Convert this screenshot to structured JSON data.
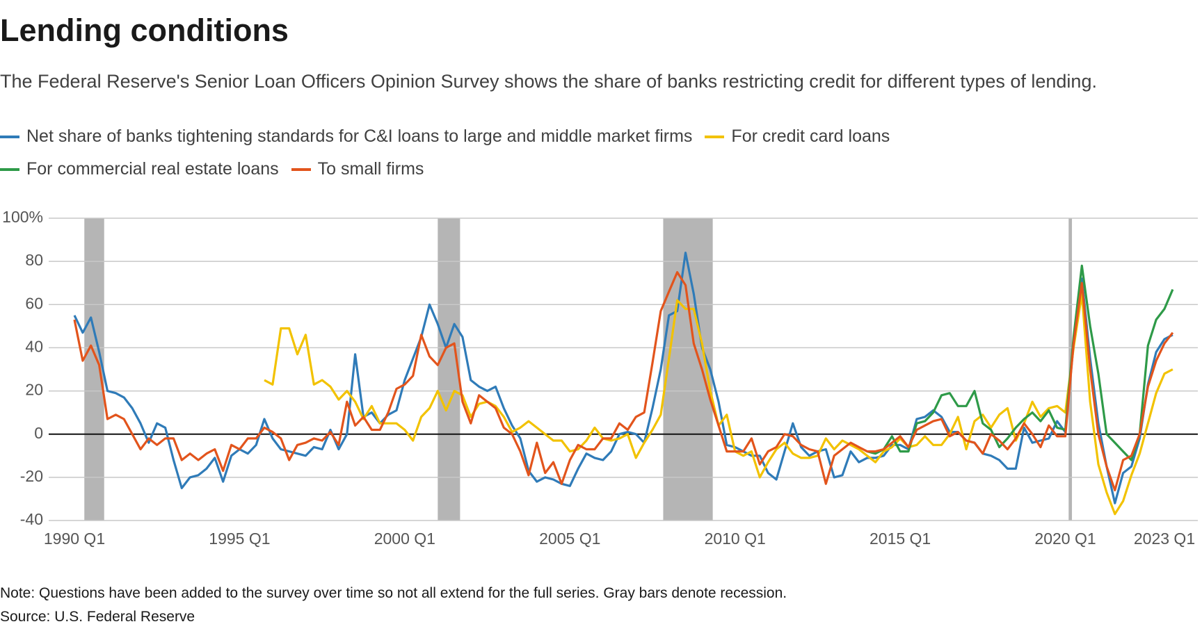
{
  "chart_data": {
    "type": "line",
    "title": "Lending conditions",
    "subtitle": "The Federal Reserve's Senior Loan Officers Opinion Survey shows the share of banks restricting credit for different types of lending.",
    "note": "Note: Questions have been added to the survey over time so not all extend for the full series. Gray bars denote recession.",
    "source": "Source: U.S. Federal Reserve",
    "categories": [
      "1990 Q1",
      null,
      null,
      null,
      null,
      null,
      null,
      null,
      null,
      null,
      null,
      null,
      null,
      null,
      null,
      null,
      null,
      null,
      null,
      null,
      "1995 Q1",
      null,
      null,
      null,
      null,
      null,
      null,
      null,
      null,
      null,
      null,
      null,
      null,
      null,
      null,
      null,
      null,
      null,
      null,
      null,
      "2000 Q1",
      null,
      null,
      null,
      null,
      null,
      null,
      null,
      null,
      null,
      null,
      null,
      null,
      null,
      null,
      null,
      null,
      null,
      null,
      null,
      "2005 Q1",
      null,
      null,
      null,
      null,
      null,
      null,
      null,
      null,
      null,
      null,
      null,
      null,
      null,
      null,
      null,
      null,
      null,
      null,
      null,
      "2010 Q1",
      null,
      null,
      null,
      null,
      null,
      null,
      null,
      null,
      null,
      null,
      null,
      null,
      null,
      null,
      null,
      null,
      null,
      null,
      null,
      "2015 Q1",
      null,
      null,
      null,
      null,
      null,
      null,
      null,
      null,
      null,
      null,
      null,
      null,
      null,
      null,
      null,
      null,
      null,
      null,
      null,
      "2020 Q1",
      null,
      null,
      null,
      null,
      null,
      null,
      null,
      null,
      null,
      null,
      null,
      "2023 Q1",
      null
    ],
    "series": [
      {
        "name": "Net share of banks tightening standards for C&I loans to large and middle market firms",
        "color": "#2f7bb8",
        "values": [
          55,
          47,
          54,
          38,
          20,
          19,
          17,
          12,
          5,
          -4,
          5,
          3,
          -12,
          -25,
          -20,
          -19,
          -16,
          -11,
          -22,
          -10,
          -7,
          -9,
          -5,
          7,
          -2,
          -7,
          -8,
          -9,
          -10,
          -6,
          -7,
          2,
          -7,
          0,
          37,
          8,
          10,
          5,
          9,
          11,
          25,
          35,
          45,
          60,
          51,
          40,
          51,
          45,
          25,
          22,
          20,
          22,
          12,
          4,
          -2,
          -17,
          -22,
          -20,
          -21,
          -23,
          -24,
          -16,
          -9,
          -11,
          -12,
          -8,
          0,
          1,
          0,
          -4,
          12,
          30,
          55,
          57,
          84,
          65,
          40,
          30,
          15,
          -5,
          -6,
          -8,
          -10,
          -10,
          -18,
          -21,
          -8,
          5,
          -6,
          -10,
          -8,
          -7,
          -20,
          -19,
          -8,
          -13,
          -11,
          -11,
          -10,
          -5,
          -5,
          -7,
          7,
          8,
          11,
          8,
          1,
          1,
          -3,
          -4,
          -9,
          -10,
          -12,
          -16,
          -16,
          3,
          -4,
          -3,
          -2,
          6,
          1,
          42,
          72,
          35,
          5,
          -15,
          -32,
          -18,
          -15,
          -2,
          23,
          38,
          44,
          46
        ]
      },
      {
        "name": "For credit card loans",
        "color": "#f2c200",
        "values": [
          null,
          null,
          null,
          null,
          null,
          null,
          null,
          null,
          null,
          null,
          null,
          null,
          null,
          null,
          null,
          null,
          null,
          null,
          null,
          null,
          null,
          null,
          null,
          25,
          23,
          49,
          49,
          37,
          46,
          23,
          25,
          22,
          16,
          20,
          15,
          7,
          13,
          5,
          5,
          5,
          2,
          -3,
          8,
          12,
          20,
          11,
          20,
          18,
          8,
          14,
          15,
          13,
          8,
          1,
          3,
          6,
          3,
          0,
          -3,
          -3,
          -8,
          -7,
          -3,
          3,
          -2,
          -3,
          -2,
          0,
          -11,
          -4,
          2,
          9,
          35,
          62,
          58,
          58,
          42,
          20,
          4,
          9,
          -8,
          -10,
          -8,
          -20,
          -13,
          -7,
          -4,
          -9,
          -11,
          -11,
          -10,
          -2,
          -7,
          -3,
          -5,
          -7,
          -10,
          -13,
          -8,
          -6,
          -2,
          -6,
          -5,
          -1,
          -5,
          -5,
          0,
          8,
          -7,
          6,
          9,
          3,
          9,
          12,
          -3,
          5,
          15,
          8,
          12,
          13,
          10,
          40,
          65,
          15,
          -14,
          -27,
          -37,
          -31,
          -19,
          -9,
          5,
          19,
          28,
          30
        ]
      },
      {
        "name": "For commercial real estate loans",
        "color": "#2e9a48",
        "values": [
          null,
          null,
          null,
          null,
          null,
          null,
          null,
          null,
          null,
          null,
          null,
          null,
          null,
          null,
          null,
          null,
          null,
          null,
          null,
          null,
          null,
          null,
          null,
          null,
          null,
          null,
          null,
          null,
          null,
          null,
          null,
          null,
          null,
          null,
          null,
          null,
          null,
          null,
          null,
          null,
          null,
          null,
          null,
          null,
          null,
          null,
          null,
          null,
          null,
          null,
          null,
          null,
          null,
          null,
          null,
          null,
          null,
          null,
          null,
          null,
          null,
          null,
          null,
          null,
          null,
          null,
          null,
          null,
          null,
          null,
          null,
          null,
          null,
          null,
          null,
          null,
          null,
          null,
          null,
          null,
          null,
          null,
          null,
          null,
          null,
          null,
          null,
          null,
          null,
          null,
          null,
          null,
          null,
          null,
          null,
          null,
          -8,
          -9,
          -7,
          -1,
          -8,
          -8,
          5,
          6,
          10,
          18,
          19,
          13,
          13,
          20,
          5,
          2,
          -6,
          -2,
          3,
          7,
          10,
          6,
          11,
          3,
          2,
          45,
          78,
          50,
          28,
          0,
          -4,
          -8,
          -12,
          0,
          41,
          53,
          58,
          67
        ]
      },
      {
        "name": "To small firms",
        "color": "#e2541c",
        "values": [
          53,
          34,
          41,
          32,
          7,
          9,
          7,
          0,
          -7,
          -2,
          -5,
          -2,
          -2,
          -12,
          -9,
          -12,
          -9,
          -7,
          -17,
          -5,
          -7,
          -2,
          -2,
          3,
          1,
          -2,
          -12,
          -5,
          -4,
          -2,
          -3,
          1,
          -5,
          15,
          4,
          8,
          2,
          2,
          10,
          21,
          23,
          27,
          46,
          36,
          32,
          40,
          42,
          15,
          5,
          18,
          15,
          12,
          3,
          0,
          -8,
          -19,
          -4,
          -18,
          -13,
          -23,
          -12,
          -5,
          -7,
          -7,
          -2,
          -2,
          5,
          2,
          8,
          10,
          33,
          57,
          66,
          75,
          69,
          42,
          30,
          16,
          4,
          -8,
          -8,
          -8,
          -2,
          -14,
          -8,
          -6,
          0,
          -1,
          -5,
          -7,
          -8,
          -23,
          -10,
          -7,
          -4,
          -6,
          -8,
          -8,
          -7,
          -4,
          -1,
          -6,
          2,
          4,
          6,
          7,
          -1,
          1,
          -3,
          -4,
          -9,
          0,
          -3,
          -7,
          -2,
          5,
          0,
          -6,
          4,
          -1,
          -1,
          42,
          70,
          30,
          0,
          -15,
          -26,
          -12,
          -10,
          0,
          22,
          34,
          42,
          47
        ]
      }
    ],
    "recessions": [
      {
        "from": 1.2,
        "to": 3.6
      },
      {
        "from": 44,
        "to": 46.7
      },
      {
        "from": 71.3,
        "to": 77.3
      },
      {
        "from": 120.4,
        "to": 120.8
      }
    ],
    "ylim": [
      -40,
      100
    ],
    "yticks": [
      -40,
      -20,
      0,
      20,
      40,
      60,
      80,
      {
        "value": 100,
        "label": "100%"
      }
    ],
    "grid": true
  }
}
